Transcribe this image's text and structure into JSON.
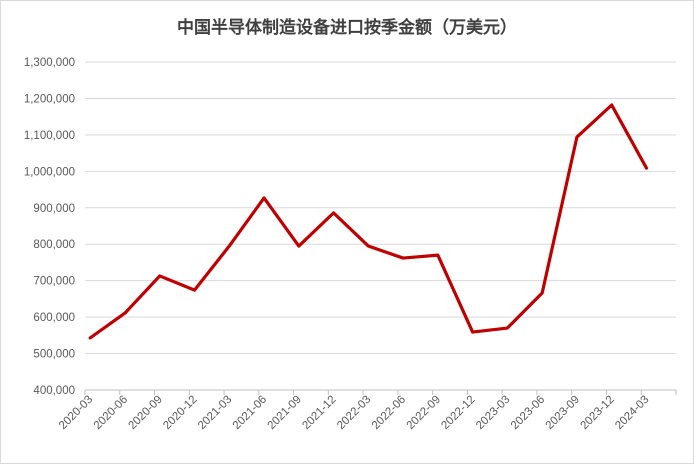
{
  "chart_data": {
    "type": "line",
    "title": "中国半导体制造设备进口按季金额（万美元）",
    "xlabel": "",
    "ylabel": "",
    "categories": [
      "2020-03",
      "2020-06",
      "2020-09",
      "2020-12",
      "2021-03",
      "2021-06",
      "2021-09",
      "2021-12",
      "2022-03",
      "2022-06",
      "2022-09",
      "2022-12",
      "2023-03",
      "2023-06",
      "2023-09",
      "2023-12",
      "2024-03"
    ],
    "series": [
      {
        "values": [
          543000,
          611000,
          713000,
          674000,
          795000,
          927000,
          795000,
          886000,
          795000,
          762000,
          770000,
          559000,
          570000,
          666000,
          1094000,
          1182000,
          1009000
        ]
      }
    ],
    "ylim": [
      400000,
      1300000
    ],
    "yticks": [
      400000,
      500000,
      600000,
      700000,
      800000,
      900000,
      1000000,
      1100000,
      1200000,
      1300000
    ],
    "ytick_labels": [
      "400,000",
      "500,000",
      "600,000",
      "700,000",
      "800,000",
      "900,000",
      "1,000,000",
      "1,100,000",
      "1,200,000",
      "1,300,000"
    ],
    "grid": true,
    "legend": "none",
    "colors": {
      "line": "#c00000",
      "grid": "#d9d9d9"
    }
  }
}
